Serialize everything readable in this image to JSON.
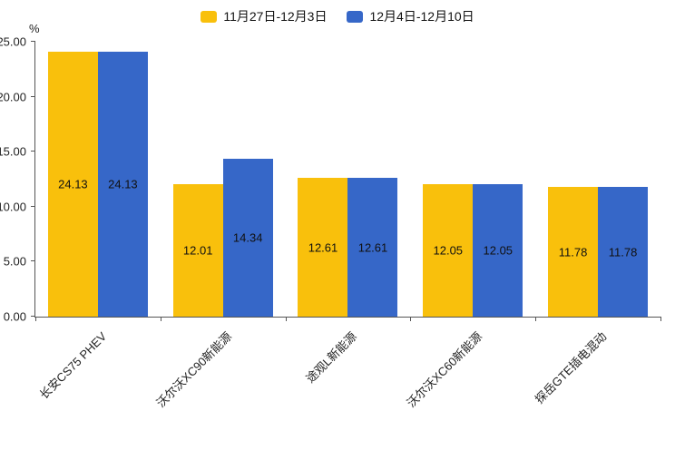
{
  "chart_data": {
    "type": "bar",
    "title": "",
    "unit_label": "%",
    "categories": [
      "长安CS75 PHEV",
      "沃尔沃XC90新能源",
      "途观L新能源",
      "沃尔沃XC60新能源",
      "探岳GTE插电混动"
    ],
    "series": [
      {
        "name": "11月27日-12月3日",
        "color": "#F9C00C",
        "values": [
          24.13,
          12.01,
          12.61,
          12.05,
          11.78
        ]
      },
      {
        "name": "12月4日-12月10日",
        "color": "#3667C8",
        "values": [
          24.13,
          14.34,
          12.61,
          12.05,
          11.78
        ]
      }
    ],
    "ylim": [
      0,
      25
    ],
    "yticks": [
      0,
      5,
      10,
      15,
      20,
      25
    ],
    "value_label_position": "inside-center",
    "grid": false,
    "legend_position": "top"
  }
}
